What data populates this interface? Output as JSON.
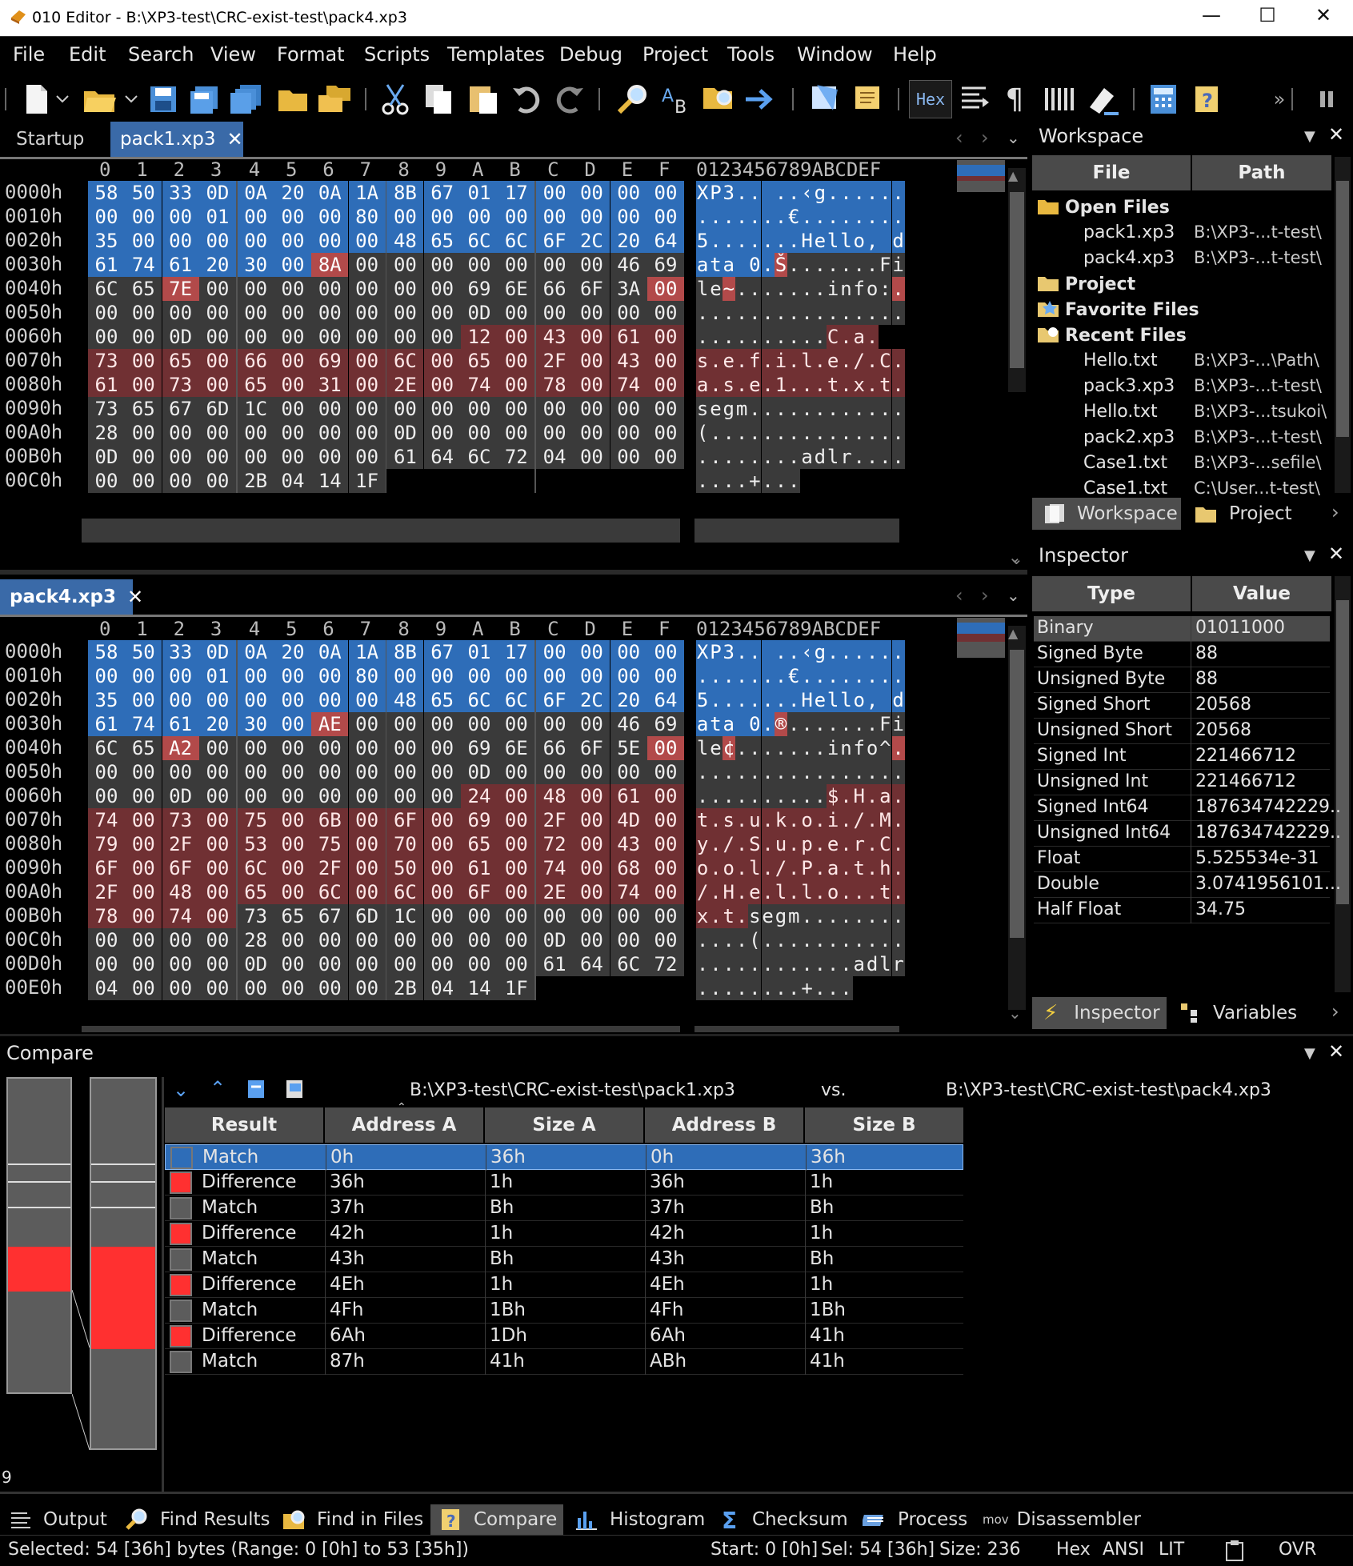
{
  "window": {
    "title": "010 Editor - B:\\XP3-test\\CRC-exist-test\\pack4.xp3"
  },
  "menu": [
    "File",
    "Edit",
    "Search",
    "View",
    "Format",
    "Scripts",
    "Templates",
    "Debug",
    "Project",
    "Tools",
    "Window",
    "Help"
  ],
  "toolbar": {
    "hex_label": "Hex"
  },
  "tabs_top": {
    "startup": "Startup",
    "pack1": "pack1.xp3",
    "close": "✕"
  },
  "tabs_bottom": {
    "pack4": "pack4.xp3",
    "close": "✕"
  },
  "hex_header": {
    "cols": [
      "0",
      "1",
      "2",
      "3",
      "4",
      "5",
      "6",
      "7",
      "8",
      "9",
      "A",
      "B",
      "C",
      "D",
      "E",
      "F"
    ],
    "ascii": "0123456789ABCDEF"
  },
  "pack1": {
    "addresses": [
      "0000h",
      "0010h",
      "0020h",
      "0030h",
      "0040h",
      "0050h",
      "0060h",
      "0070h",
      "0080h",
      "0090h",
      "00A0h",
      "00B0h",
      "00C0h"
    ],
    "bytes": [
      "58 50 33 0D 0A 20 0A 1A 8B 67 01 17 00 00 00 00",
      "00 00 00 01 00 00 00 80 00 00 00 00 00 00 00 00",
      "35 00 00 00 00 00 00 00 48 65 6C 6C 6F 2C 20 64",
      "61 74 61 20 30 00 8A 00 00 00 00 00 00 00 46 69",
      "6C 65 7E 00 00 00 00 00 00 00 69 6E 66 6F 3A 00",
      "00 00 00 00 00 00 00 00 00 00 0D 00 00 00 00 00",
      "00 00 0D 00 00 00 00 00 00 00 12 00 43 00 61 00",
      "73 00 65 00 66 00 69 00 6C 00 65 00 2F 00 43 00",
      "61 00 73 00 65 00 31 00 2E 00 74 00 78 00 74 00",
      "73 65 67 6D 1C 00 00 00 00 00 00 00 00 00 00 00",
      "28 00 00 00 00 00 00 00 0D 00 00 00 00 00 00 00",
      "0D 00 00 00 00 00 00 00 61 64 6C 72 04 00 00 00",
      "00 00 00 00 2B 04 14 1F"
    ],
    "ascii": [
      "XP3.. ..‹g......",
      ".......€........",
      "5.......Hello, d",
      "ata 0.Š.......Fi",
      "le~.......info:.",
      "................",
      "..........C.a.",
      "s.e.f.i.l.e./.C.",
      "a.s.e.1...t.x.t.",
      "segm............",
      "(...............",
      "........adlr....",
      "....+..."
    ],
    "colors": [
      "bbbbbbbbbbbbbbbb",
      "bbbbbbbbbbbbbbbb",
      "bbbbbbbbbbbbbbbb",
      "bbbbbbdggggggggg",
      "ggdggggggggggggd",
      "gggggggggggggggg",
      "ggggggggggrrrrrr",
      "rrrrrrrrrrrrrrrr",
      "rrrrrrrrrrrrrrrr",
      "gggggggggggggggg",
      "gggggggggggggggg",
      "gggggggggggggggg",
      "gggggggg"
    ]
  },
  "pack4": {
    "addresses": [
      "0000h",
      "0010h",
      "0020h",
      "0030h",
      "0040h",
      "0050h",
      "0060h",
      "0070h",
      "0080h",
      "0090h",
      "00A0h",
      "00B0h",
      "00C0h",
      "00D0h",
      "00E0h"
    ],
    "bytes": [
      "58 50 33 0D 0A 20 0A 1A 8B 67 01 17 00 00 00 00",
      "00 00 00 01 00 00 00 80 00 00 00 00 00 00 00 00",
      "35 00 00 00 00 00 00 00 48 65 6C 6C 6F 2C 20 64",
      "61 74 61 20 30 00 AE 00 00 00 00 00 00 00 46 69",
      "6C 65 A2 00 00 00 00 00 00 00 69 6E 66 6F 5E 00",
      "00 00 00 00 00 00 00 00 00 00 0D 00 00 00 00 00",
      "00 00 0D 00 00 00 00 00 00 00 24 00 48 00 61 00",
      "74 00 73 00 75 00 6B 00 6F 00 69 00 2F 00 4D 00",
      "79 00 2F 00 53 00 75 00 70 00 65 00 72 00 43 00",
      "6F 00 6F 00 6C 00 2F 00 50 00 61 00 74 00 68 00",
      "2F 00 48 00 65 00 6C 00 6C 00 6F 00 2E 00 74 00",
      "78 00 74 00 73 65 67 6D 1C 00 00 00 00 00 00 00",
      "00 00 00 00 28 00 00 00 00 00 00 00 0D 00 00 00",
      "00 00 00 00 0D 00 00 00 00 00 00 00 61 64 6C 72",
      "04 00 00 00 00 00 00 00 2B 04 14 1F"
    ],
    "ascii": [
      "XP3.. ..‹g......",
      ".......€........",
      "5.......Hello, d",
      "ata 0.®.......Fi",
      "le¢.......info^.",
      "................",
      "..........$.H.a.",
      "t.s.u.k.o.i./.M.",
      "y./.S.u.p.e.r.C.",
      "o.o.l./.P.a.t.h.",
      "/.H.e.l.l.o...t.",
      "x.t.segm........",
      "....(...........",
      "............adlr",
      "........+..."
    ],
    "colors": [
      "bbbbbbbbbbbbbbbb",
      "bbbbbbbbbbbbbbbb",
      "bbbbbbbbbbbbbbbb",
      "bbbbbbdggggggggg",
      "ggdggggggggggggd",
      "gggggggggggggggg",
      "ggggggggggrrrrrr",
      "rrrrrrrrrrrrrrrr",
      "rrrrrrrrrrrrrrrr",
      "rrrrrrrrrrrrrrrr",
      "rrrrrrrrrrrrrrrr",
      "rrrrgggggggggggg",
      "gggggggggggggggg",
      "gggggggggggggggg",
      "gggggggggggg"
    ]
  },
  "workspace": {
    "title": "Workspace",
    "col_file": "File",
    "col_path": "Path",
    "open_files": "Open Files",
    "files": [
      {
        "name": "pack1.xp3",
        "path": "B:\\XP3-...t-test\\"
      },
      {
        "name": "pack4.xp3",
        "path": "B:\\XP3-...t-test\\"
      }
    ],
    "project": "Project",
    "favorite": "Favorite Files",
    "recent": "Recent Files",
    "recent_files": [
      {
        "name": "Hello.txt",
        "path": "B:\\XP3-...\\Path\\"
      },
      {
        "name": "pack3.xp3",
        "path": "B:\\XP3-...t-test\\"
      },
      {
        "name": "Hello.txt",
        "path": "B:\\XP3-...tsukoi\\"
      },
      {
        "name": "pack2.xp3",
        "path": "B:\\XP3-...t-test\\"
      },
      {
        "name": "Case1.txt",
        "path": "B:\\XP3-...sefile\\"
      },
      {
        "name": "Case1.txt",
        "path": "C:\\User...t-test\\"
      }
    ],
    "tab_workspace": "Workspace",
    "tab_project": "Project"
  },
  "inspector": {
    "title": "Inspector",
    "col_type": "Type",
    "col_value": "Value",
    "rows": [
      {
        "type": "Binary",
        "value": "01011000"
      },
      {
        "type": "Signed Byte",
        "value": "88"
      },
      {
        "type": "Unsigned Byte",
        "value": "88"
      },
      {
        "type": "Signed Short",
        "value": "20568"
      },
      {
        "type": "Unsigned Short",
        "value": "20568"
      },
      {
        "type": "Signed Int",
        "value": "221466712"
      },
      {
        "type": "Unsigned Int",
        "value": "221466712"
      },
      {
        "type": "Signed Int64",
        "value": "187634742229.."
      },
      {
        "type": "Unsigned Int64",
        "value": "187634742229.."
      },
      {
        "type": "Float",
        "value": "5.525534e-31"
      },
      {
        "type": "Double",
        "value": "3.0741956101..."
      },
      {
        "type": "Half Float",
        "value": "34.75"
      }
    ],
    "tab_inspector": "Inspector",
    "tab_variables": "Variables"
  },
  "compare": {
    "title": "Compare",
    "file_a": "B:\\XP3-test\\CRC-exist-test\\pack1.xp3",
    "vs": "vs.",
    "file_b": "B:\\XP3-test\\CRC-exist-test\\pack4.xp3",
    "headers": [
      "Result",
      "Address A",
      "Size A",
      "Address B",
      "Size B"
    ],
    "rows": [
      {
        "result": "Match",
        "addr_a": "0h",
        "size_a": "36h",
        "addr_b": "0h",
        "size_b": "36h"
      },
      {
        "result": "Difference",
        "addr_a": "36h",
        "size_a": "1h",
        "addr_b": "36h",
        "size_b": "1h"
      },
      {
        "result": "Match",
        "addr_a": "37h",
        "size_a": "Bh",
        "addr_b": "37h",
        "size_b": "Bh"
      },
      {
        "result": "Difference",
        "addr_a": "42h",
        "size_a": "1h",
        "addr_b": "42h",
        "size_b": "1h"
      },
      {
        "result": "Match",
        "addr_a": "43h",
        "size_a": "Bh",
        "addr_b": "43h",
        "size_b": "Bh"
      },
      {
        "result": "Difference",
        "addr_a": "4Eh",
        "size_a": "1h",
        "addr_b": "4Eh",
        "size_b": "1h"
      },
      {
        "result": "Match",
        "addr_a": "4Fh",
        "size_a": "1Bh",
        "addr_b": "4Fh",
        "size_b": "1Bh"
      },
      {
        "result": "Difference",
        "addr_a": "6Ah",
        "size_a": "1Dh",
        "addr_b": "6Ah",
        "size_b": "41h"
      },
      {
        "result": "Match",
        "addr_a": "87h",
        "size_a": "41h",
        "addr_b": "ABh",
        "size_b": "41h"
      }
    ],
    "count": "9"
  },
  "bottom_tabs": [
    "Output",
    "Find Results",
    "Find in Files",
    "Compare",
    "Histogram",
    "Checksum",
    "Process",
    "Disassembler"
  ],
  "status": {
    "selected": "Selected: 54 [36h] bytes (Range: 0 [0h] to 53 [35h])",
    "start": "Start: 0 [0h]",
    "sel": "Sel: 54 [36h]",
    "size": "Size: 236",
    "hex": "Hex",
    "ansi": "ANSI",
    "lit": "LIT",
    "ovr": "OVR"
  },
  "colors": {
    "selection": "#2e6db8",
    "difference": "#703033",
    "match": "#3a3a3a",
    "accent": "#3a6aa8",
    "diff_marker": "#ff3030"
  }
}
